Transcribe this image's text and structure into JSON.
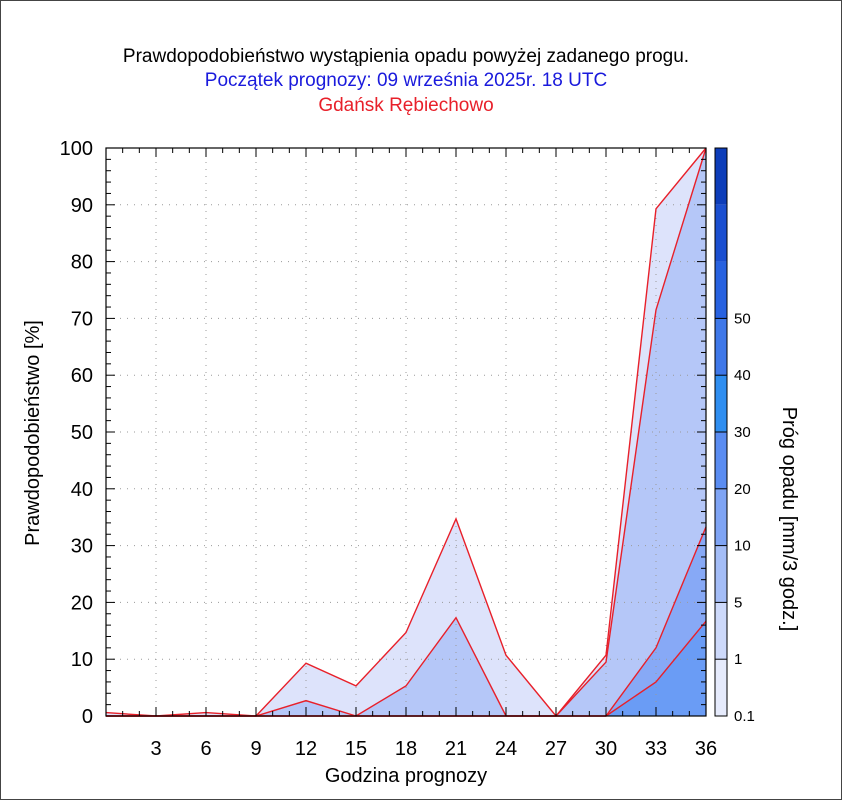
{
  "chart_data": {
    "type": "area",
    "title": "Prawdopodobieństwo wystąpienia opadu powyżej zadanego progu.",
    "subtitle": "Początek prognozy: 09 września 2025r. 18 UTC",
    "station": "Gdańsk Rębiechowo",
    "xlabel": "Godzina prognozy",
    "ylabel": "Prawdopodobieństwo [%]",
    "colorbar_label": "Próg opadu [mm/3 godz.]",
    "xlim": [
      0,
      36
    ],
    "ylim": [
      0,
      100
    ],
    "x_ticks": [
      3,
      6,
      9,
      12,
      15,
      18,
      21,
      24,
      27,
      30,
      33,
      36
    ],
    "y_ticks": [
      0,
      10,
      20,
      30,
      40,
      50,
      60,
      70,
      80,
      90,
      100
    ],
    "x": [
      0,
      3,
      6,
      9,
      12,
      15,
      18,
      21,
      24,
      27,
      30,
      33,
      36
    ],
    "series": [
      {
        "name": "0.1",
        "color": "#dde3fb",
        "values": [
          0.6,
          0,
          0.6,
          0,
          9.3,
          5.3,
          14.7,
          34.7,
          10.7,
          0,
          10.7,
          89.3,
          100
        ]
      },
      {
        "name": "1",
        "color": "#b5c7f8",
        "values": [
          0,
          0,
          0,
          0,
          2.7,
          0,
          5.3,
          17.3,
          0,
          0,
          9.5,
          71.5,
          100
        ]
      },
      {
        "name": "5",
        "color": "#87a9f6",
        "values": [
          0,
          0,
          0,
          0,
          0,
          0,
          0,
          0,
          0,
          0,
          0,
          12,
          33.3
        ]
      },
      {
        "name": "10",
        "color": "#6a9cf5",
        "values": [
          0,
          0,
          0,
          0,
          0,
          0,
          0,
          0,
          0,
          0,
          0,
          6,
          16.7
        ]
      }
    ],
    "colorbar": {
      "labels": [
        "0.1",
        "1",
        "5",
        "10",
        "20",
        "30",
        "40",
        "50"
      ],
      "colors": [
        "#e6ebfc",
        "#cdd9fa",
        "#a4bdf7",
        "#7fa4f4",
        "#5a8cf1",
        "#2f8ef0",
        "#3f78e9",
        "#2862e0",
        "#1b4fd0",
        "#0d3db9"
      ]
    },
    "grid": true,
    "legend": "colorbar-right"
  }
}
